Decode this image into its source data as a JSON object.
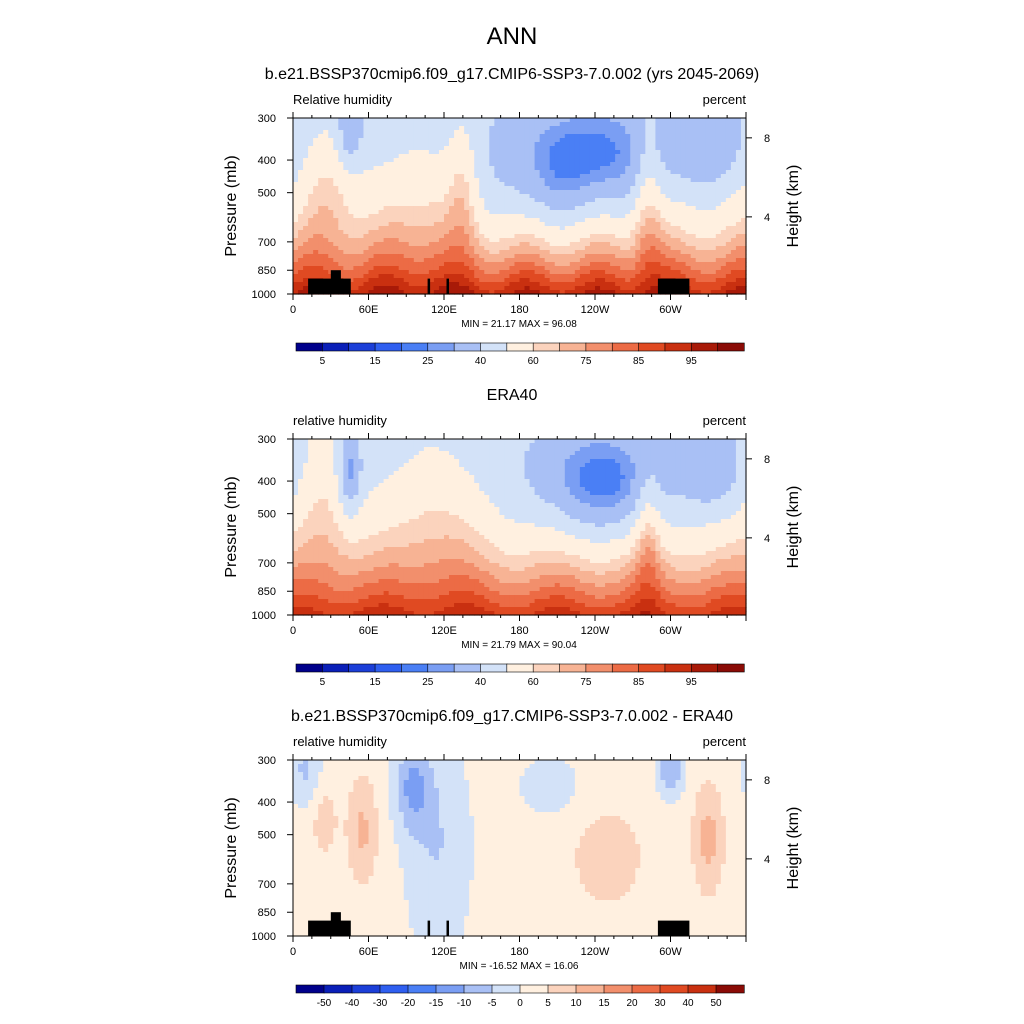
{
  "page_title": "ANN",
  "chart_data": [
    {
      "type": "heatmap",
      "title": "b.e21.BSSP370cmip6.f09_g17.CMIP6-SSP3-7.0.002 (yrs 2045-2069)",
      "left_label": "Relative humidity",
      "right_label": "percent",
      "ylabel": "Pressure (mb)",
      "ylabel_right": "Height (km)",
      "x_ticks": [
        "0",
        "60E",
        "120E",
        "180",
        "120W",
        "60W"
      ],
      "y_ticks": [
        "300",
        "400",
        "500",
        "700",
        "850",
        "1000"
      ],
      "y_ticks_right": [
        "8",
        "4"
      ],
      "stats": "MIN = 21.17 MAX = 96.08",
      "colorbar_labels": [
        "5",
        "15",
        "25",
        "40",
        "60",
        "75",
        "85",
        "95"
      ],
      "min": 21.17,
      "max": 96.08,
      "colors": [
        "#00008b",
        "#0a1fb8",
        "#1c3fd8",
        "#2f5ff0",
        "#4a7ff5",
        "#7a9ef3",
        "#a9c0f5",
        "#d3e2f8",
        "#fff0e0",
        "#fbd3bd",
        "#f7b394",
        "#f28f6c",
        "#ec6b45",
        "#e04a22",
        "#c93010",
        "#a81a08",
        "#8a0b06"
      ],
      "masks": "land"
    },
    {
      "type": "heatmap",
      "title": "ERA40",
      "left_label": "relative humidity",
      "right_label": "percent",
      "ylabel": "Pressure (mb)",
      "ylabel_right": "Height (km)",
      "x_ticks": [
        "0",
        "60E",
        "120E",
        "180",
        "120W",
        "60W"
      ],
      "y_ticks": [
        "300",
        "400",
        "500",
        "700",
        "850",
        "1000"
      ],
      "y_ticks_right": [
        "8",
        "4"
      ],
      "stats": "MIN = 21.79 MAX = 90.04",
      "colorbar_labels": [
        "5",
        "15",
        "25",
        "40",
        "60",
        "75",
        "85",
        "95"
      ],
      "min": 21.79,
      "max": 90.04,
      "colors": [
        "#00008b",
        "#0a1fb8",
        "#1c3fd8",
        "#2f5ff0",
        "#4a7ff5",
        "#7a9ef3",
        "#a9c0f5",
        "#d3e2f8",
        "#fff0e0",
        "#fbd3bd",
        "#f7b394",
        "#f28f6c",
        "#ec6b45",
        "#e04a22",
        "#c93010",
        "#a81a08",
        "#8a0b06"
      ],
      "masks": "none"
    },
    {
      "type": "heatmap",
      "title": "b.e21.BSSP370cmip6.f09_g17.CMIP6-SSP3-7.0.002 - ERA40",
      "left_label": "relative humidity",
      "right_label": "percent",
      "ylabel": "Pressure (mb)",
      "ylabel_right": "Height (km)",
      "x_ticks": [
        "0",
        "60E",
        "120E",
        "180",
        "120W",
        "60W"
      ],
      "y_ticks": [
        "300",
        "400",
        "500",
        "700",
        "850",
        "1000"
      ],
      "y_ticks_right": [
        "8",
        "4"
      ],
      "stats": "MIN = -16.52 MAX = 16.06",
      "colorbar_labels": [
        "-50",
        "-40",
        "-30",
        "-20",
        "-15",
        "-10",
        "-5",
        "0",
        "5",
        "10",
        "15",
        "20",
        "30",
        "40",
        "50"
      ],
      "min": -16.52,
      "max": 16.06,
      "colors": [
        "#00008b",
        "#0a1fb8",
        "#1c3fd8",
        "#2f5ff0",
        "#4a7ff5",
        "#7a9ef3",
        "#a9c0f5",
        "#d3e2f8",
        "#fff0e0",
        "#fbd3bd",
        "#f7b394",
        "#f28f6c",
        "#ec6b45",
        "#e04a22",
        "#c93010",
        "#8a0b06"
      ],
      "masks": "land"
    }
  ]
}
